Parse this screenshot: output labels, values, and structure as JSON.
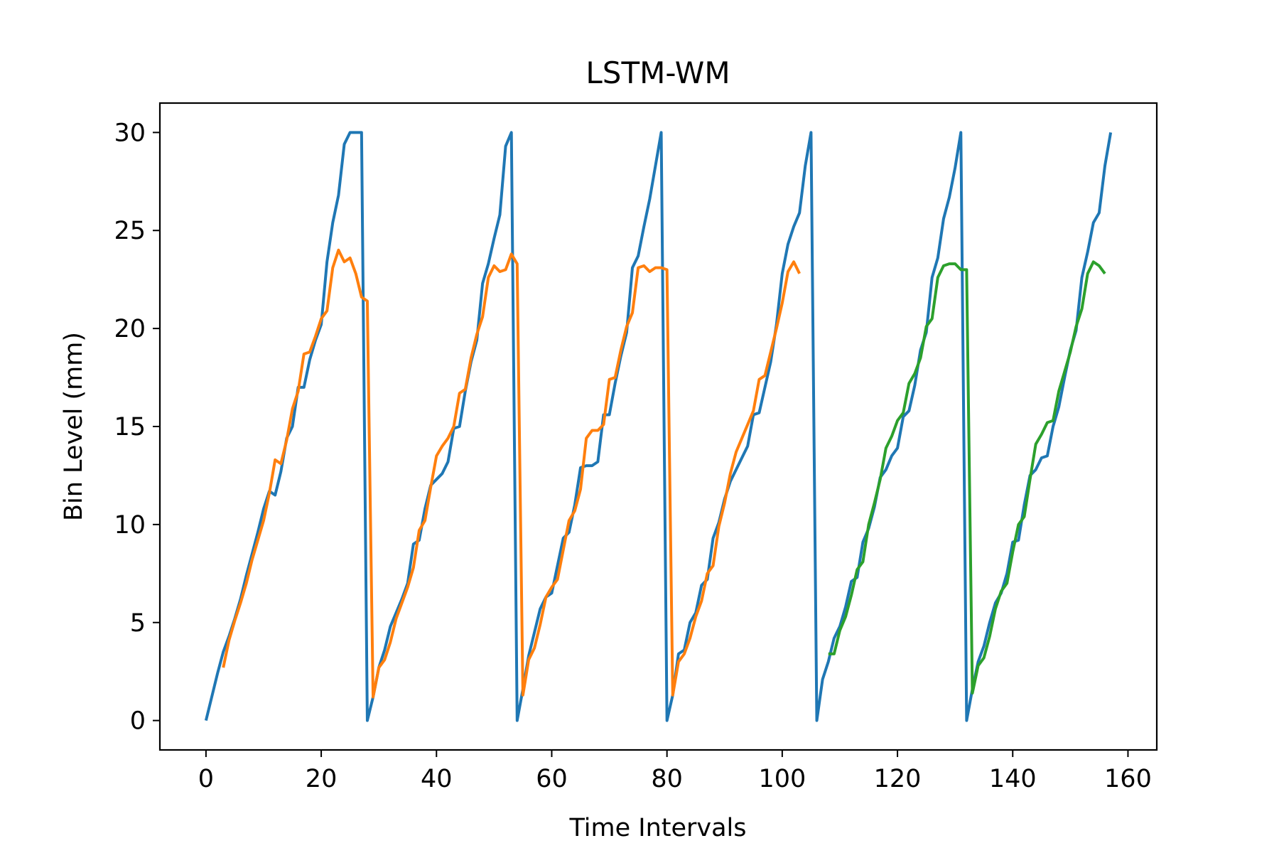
{
  "chart_data": {
    "type": "line",
    "title": "LSTM-WM",
    "xlabel": "Time Intervals",
    "ylabel": "Bin Level (mm)",
    "xlim": [
      -8,
      165
    ],
    "ylim": [
      -1.5,
      31.5
    ],
    "xticks": [
      0,
      20,
      40,
      60,
      80,
      100,
      120,
      140,
      160
    ],
    "yticks": [
      0,
      5,
      10,
      15,
      20,
      25,
      30
    ],
    "grid": false,
    "legend": "none",
    "series": [
      {
        "color": "#1f77b4",
        "points": [
          [
            0,
            0
          ],
          [
            1,
            1.2
          ],
          [
            2,
            2.4
          ],
          [
            3,
            3.5
          ],
          [
            4,
            4.3
          ],
          [
            5,
            5.2
          ],
          [
            6,
            6.2
          ],
          [
            7,
            7.4
          ],
          [
            8,
            8.5
          ],
          [
            9,
            9.6
          ],
          [
            10,
            10.8
          ],
          [
            11,
            11.7
          ],
          [
            12,
            11.5
          ],
          [
            13,
            12.7
          ],
          [
            14,
            14.4
          ],
          [
            15,
            15.0
          ],
          [
            16,
            17.0
          ],
          [
            17,
            17.0
          ],
          [
            18,
            18.4
          ],
          [
            19,
            19.4
          ],
          [
            20,
            20.2
          ],
          [
            21,
            23.4
          ],
          [
            22,
            25.4
          ],
          [
            23,
            26.8
          ],
          [
            24,
            29.4
          ],
          [
            25,
            30
          ],
          [
            26,
            30
          ],
          [
            27,
            30
          ],
          [
            28,
            0
          ],
          [
            29,
            1.2
          ],
          [
            30,
            2.7
          ],
          [
            31,
            3.6
          ],
          [
            32,
            4.8
          ],
          [
            33,
            5.5
          ],
          [
            34,
            6.2
          ],
          [
            35,
            7.0
          ],
          [
            36,
            9.0
          ],
          [
            37,
            9.2
          ],
          [
            38,
            10.8
          ],
          [
            39,
            12.0
          ],
          [
            40,
            12.3
          ],
          [
            41,
            12.6
          ],
          [
            42,
            13.2
          ],
          [
            43,
            14.9
          ],
          [
            44,
            15.0
          ],
          [
            45,
            16.8
          ],
          [
            46,
            18.3
          ],
          [
            47,
            19.4
          ],
          [
            48,
            22.3
          ],
          [
            49,
            23.3
          ],
          [
            50,
            24.6
          ],
          [
            51,
            25.8
          ],
          [
            52,
            29.3
          ],
          [
            53,
            30
          ],
          [
            54,
            0
          ],
          [
            55,
            1.6
          ],
          [
            56,
            3.3
          ],
          [
            57,
            4.5
          ],
          [
            58,
            5.7
          ],
          [
            59,
            6.3
          ],
          [
            60,
            6.5
          ],
          [
            61,
            7.9
          ],
          [
            62,
            9.3
          ],
          [
            63,
            9.6
          ],
          [
            64,
            11.0
          ],
          [
            65,
            12.9
          ],
          [
            66,
            13.0
          ],
          [
            67,
            13.0
          ],
          [
            68,
            13.2
          ],
          [
            69,
            15.6
          ],
          [
            70,
            15.6
          ],
          [
            71,
            17.2
          ],
          [
            72,
            18.6
          ],
          [
            73,
            19.8
          ],
          [
            74,
            23.1
          ],
          [
            75,
            23.7
          ],
          [
            76,
            25.2
          ],
          [
            77,
            26.6
          ],
          [
            78,
            28.3
          ],
          [
            79,
            30
          ],
          [
            80,
            0
          ],
          [
            81,
            1.3
          ],
          [
            82,
            3.4
          ],
          [
            83,
            3.6
          ],
          [
            84,
            5.0
          ],
          [
            85,
            5.5
          ],
          [
            86,
            6.9
          ],
          [
            87,
            7.2
          ],
          [
            88,
            9.3
          ],
          [
            89,
            10.1
          ],
          [
            90,
            11.3
          ],
          [
            91,
            12.2
          ],
          [
            92,
            12.8
          ],
          [
            93,
            13.4
          ],
          [
            94,
            14.0
          ],
          [
            95,
            15.6
          ],
          [
            96,
            15.7
          ],
          [
            97,
            17.0
          ],
          [
            98,
            18.3
          ],
          [
            99,
            20.2
          ],
          [
            100,
            22.8
          ],
          [
            101,
            24.3
          ],
          [
            102,
            25.2
          ],
          [
            103,
            25.9
          ],
          [
            104,
            28.3
          ],
          [
            105,
            30
          ],
          [
            106,
            0
          ],
          [
            107,
            2.1
          ],
          [
            108,
            3.0
          ],
          [
            109,
            4.2
          ],
          [
            110,
            4.8
          ],
          [
            111,
            5.8
          ],
          [
            112,
            7.1
          ],
          [
            113,
            7.3
          ],
          [
            114,
            9.1
          ],
          [
            115,
            9.8
          ],
          [
            116,
            10.9
          ],
          [
            117,
            12.4
          ],
          [
            118,
            12.8
          ],
          [
            119,
            13.5
          ],
          [
            120,
            13.9
          ],
          [
            121,
            15.5
          ],
          [
            122,
            15.8
          ],
          [
            123,
            17.1
          ],
          [
            124,
            18.9
          ],
          [
            125,
            19.8
          ],
          [
            126,
            22.6
          ],
          [
            127,
            23.6
          ],
          [
            128,
            25.6
          ],
          [
            129,
            26.7
          ],
          [
            130,
            28.2
          ],
          [
            131,
            30
          ],
          [
            132,
            0
          ],
          [
            133,
            1.6
          ],
          [
            134,
            3.0
          ],
          [
            135,
            3.8
          ],
          [
            136,
            5.0
          ],
          [
            137,
            6.0
          ],
          [
            138,
            6.5
          ],
          [
            139,
            7.5
          ],
          [
            140,
            9.1
          ],
          [
            141,
            9.2
          ],
          [
            142,
            11.0
          ],
          [
            143,
            12.5
          ],
          [
            144,
            12.8
          ],
          [
            145,
            13.4
          ],
          [
            146,
            13.5
          ],
          [
            147,
            15.0
          ],
          [
            148,
            16.0
          ],
          [
            149,
            17.5
          ],
          [
            150,
            18.9
          ],
          [
            151,
            19.9
          ],
          [
            152,
            22.6
          ],
          [
            153,
            23.9
          ],
          [
            154,
            25.4
          ],
          [
            155,
            25.9
          ],
          [
            156,
            28.3
          ],
          [
            157,
            30
          ]
        ]
      },
      {
        "color": "#ff7f0e",
        "points": [
          [
            3,
            2.7
          ],
          [
            4,
            4.1
          ],
          [
            5,
            5.1
          ],
          [
            6,
            6.0
          ],
          [
            7,
            7.0
          ],
          [
            8,
            8.2
          ],
          [
            9,
            9.2
          ],
          [
            10,
            10.2
          ],
          [
            11,
            11.6
          ],
          [
            12,
            13.3
          ],
          [
            13,
            13.1
          ],
          [
            14,
            14.3
          ],
          [
            15,
            15.9
          ],
          [
            16,
            16.8
          ],
          [
            17,
            18.7
          ],
          [
            18,
            18.8
          ],
          [
            19,
            19.6
          ],
          [
            20,
            20.5
          ],
          [
            21,
            20.9
          ],
          [
            22,
            23.1
          ],
          [
            23,
            24.0
          ],
          [
            24,
            23.4
          ],
          [
            25,
            23.6
          ],
          [
            26,
            22.8
          ],
          [
            27,
            21.6
          ],
          [
            28,
            21.4
          ],
          [
            29,
            1.2
          ],
          [
            30,
            2.7
          ],
          [
            31,
            3.1
          ],
          [
            32,
            4.0
          ],
          [
            33,
            5.2
          ],
          [
            34,
            6.0
          ],
          [
            35,
            6.8
          ],
          [
            36,
            7.8
          ],
          [
            37,
            9.7
          ],
          [
            38,
            10.2
          ],
          [
            39,
            11.9
          ],
          [
            40,
            13.5
          ],
          [
            41,
            14.0
          ],
          [
            42,
            14.4
          ],
          [
            43,
            15.0
          ],
          [
            44,
            16.7
          ],
          [
            45,
            16.9
          ],
          [
            46,
            18.5
          ],
          [
            47,
            19.7
          ],
          [
            48,
            20.6
          ],
          [
            49,
            22.6
          ],
          [
            50,
            23.2
          ],
          [
            51,
            22.9
          ],
          [
            52,
            23.0
          ],
          [
            53,
            23.8
          ],
          [
            54,
            23.3
          ],
          [
            55,
            1.3
          ],
          [
            56,
            3.1
          ],
          [
            57,
            3.7
          ],
          [
            58,
            4.9
          ],
          [
            59,
            6.3
          ],
          [
            60,
            6.8
          ],
          [
            61,
            7.2
          ],
          [
            62,
            8.7
          ],
          [
            63,
            10.2
          ],
          [
            64,
            10.7
          ],
          [
            65,
            11.8
          ],
          [
            66,
            14.4
          ],
          [
            67,
            14.8
          ],
          [
            68,
            14.8
          ],
          [
            69,
            15.1
          ],
          [
            70,
            17.4
          ],
          [
            71,
            17.5
          ],
          [
            72,
            18.9
          ],
          [
            73,
            20.1
          ],
          [
            74,
            20.8
          ],
          [
            75,
            23.1
          ],
          [
            76,
            23.2
          ],
          [
            77,
            22.9
          ],
          [
            78,
            23.1
          ],
          [
            79,
            23.1
          ],
          [
            80,
            23.0
          ],
          [
            81,
            1.3
          ],
          [
            82,
            3.0
          ],
          [
            83,
            3.4
          ],
          [
            84,
            4.2
          ],
          [
            85,
            5.3
          ],
          [
            86,
            6.1
          ],
          [
            87,
            7.5
          ],
          [
            88,
            7.9
          ],
          [
            89,
            9.9
          ],
          [
            90,
            11.1
          ],
          [
            91,
            12.6
          ],
          [
            92,
            13.7
          ],
          [
            93,
            14.4
          ],
          [
            94,
            15.1
          ],
          [
            95,
            15.8
          ],
          [
            96,
            17.4
          ],
          [
            97,
            17.6
          ],
          [
            98,
            18.8
          ],
          [
            99,
            20.0
          ],
          [
            100,
            21.3
          ],
          [
            101,
            22.9
          ],
          [
            102,
            23.4
          ],
          [
            103,
            22.8
          ]
        ]
      },
      {
        "color": "#2ca02c",
        "points": [
          [
            108,
            3.4
          ],
          [
            109,
            3.4
          ],
          [
            110,
            4.6
          ],
          [
            111,
            5.3
          ],
          [
            112,
            6.4
          ],
          [
            113,
            7.7
          ],
          [
            114,
            8.1
          ],
          [
            115,
            10.0
          ],
          [
            116,
            11.1
          ],
          [
            117,
            12.3
          ],
          [
            118,
            13.9
          ],
          [
            119,
            14.5
          ],
          [
            120,
            15.3
          ],
          [
            121,
            15.7
          ],
          [
            122,
            17.2
          ],
          [
            123,
            17.7
          ],
          [
            124,
            18.5
          ],
          [
            125,
            20.1
          ],
          [
            126,
            20.5
          ],
          [
            127,
            22.6
          ],
          [
            128,
            23.2
          ],
          [
            129,
            23.3
          ],
          [
            130,
            23.3
          ],
          [
            131,
            23.0
          ],
          [
            132,
            23.0
          ],
          [
            133,
            1.4
          ],
          [
            134,
            2.8
          ],
          [
            135,
            3.2
          ],
          [
            136,
            4.3
          ],
          [
            137,
            5.7
          ],
          [
            138,
            6.6
          ],
          [
            139,
            7.0
          ],
          [
            140,
            8.6
          ],
          [
            141,
            10.0
          ],
          [
            142,
            10.4
          ],
          [
            143,
            12.3
          ],
          [
            144,
            14.1
          ],
          [
            145,
            14.6
          ],
          [
            146,
            15.2
          ],
          [
            147,
            15.3
          ],
          [
            148,
            16.8
          ],
          [
            149,
            17.8
          ],
          [
            150,
            18.8
          ],
          [
            151,
            20.1
          ],
          [
            152,
            21.0
          ],
          [
            153,
            22.8
          ],
          [
            154,
            23.4
          ],
          [
            155,
            23.2
          ],
          [
            156,
            22.8
          ]
        ]
      }
    ]
  }
}
